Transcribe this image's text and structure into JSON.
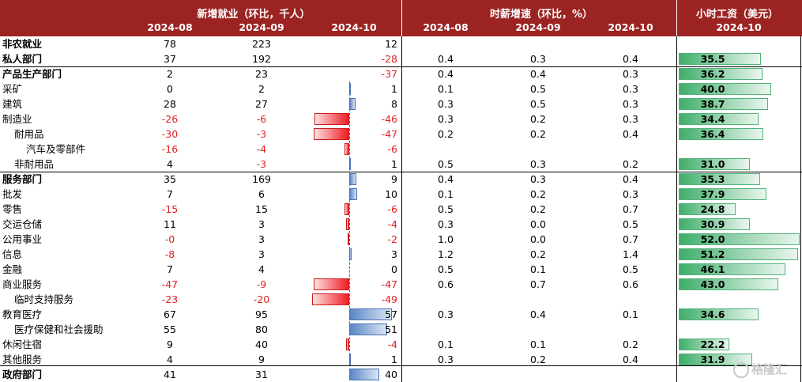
{
  "header": {
    "group_employment": "新增就业（环比，千人）",
    "group_wage_growth": "时薪增速（环比，%）",
    "group_hourly_wage": "小时工资（美元）",
    "months_employment": [
      "2024-08",
      "2024-09",
      "2024-10"
    ],
    "months_wage_growth": [
      "2024-08",
      "2024-09",
      "2024-10"
    ],
    "month_hourly_wage": "2024-10"
  },
  "rows": [
    {
      "label": "非农就业",
      "indent": 0,
      "bold": true,
      "emp": [
        "78",
        "223",
        "12"
      ],
      "emp_oct_value": 12,
      "wg": [
        "",
        "",
        ""
      ],
      "wage": "",
      "wage_value": null
    },
    {
      "label": "私人部门",
      "indent": 0,
      "bold": true,
      "emp": [
        "37",
        "192",
        "-28"
      ],
      "emp_oct_value": -28,
      "wg": [
        "0.4",
        "0.3",
        "0.4"
      ],
      "wage": "35.5",
      "wage_value": 35.5
    },
    {
      "label": "产品生产部门",
      "indent": 0,
      "bold": true,
      "emp": [
        "2",
        "23",
        "-37"
      ],
      "emp_oct_value": -37,
      "wg": [
        "0.4",
        "0.4",
        "0.3"
      ],
      "wage": "36.2",
      "wage_value": 36.2
    },
    {
      "label": "采矿",
      "indent": 0,
      "bold": false,
      "emp": [
        "0",
        "2",
        "1"
      ],
      "emp_oct_value": 1,
      "wg": [
        "0.1",
        "0.5",
        "0.3"
      ],
      "wage": "40.0",
      "wage_value": 40.0
    },
    {
      "label": "建筑",
      "indent": 0,
      "bold": false,
      "emp": [
        "28",
        "27",
        "8"
      ],
      "emp_oct_value": 8,
      "wg": [
        "0.3",
        "0.5",
        "0.3"
      ],
      "wage": "38.7",
      "wage_value": 38.7
    },
    {
      "label": "制造业",
      "indent": 0,
      "bold": false,
      "emp": [
        "-26",
        "-6",
        "-46"
      ],
      "emp_oct_value": -46,
      "wg": [
        "0.3",
        "0.2",
        "0.3"
      ],
      "wage": "34.4",
      "wage_value": 34.4
    },
    {
      "label": "耐用品",
      "indent": 1,
      "bold": false,
      "emp": [
        "-30",
        "-3",
        "-47"
      ],
      "emp_oct_value": -47,
      "wg": [
        "0.2",
        "0.2",
        "0.4"
      ],
      "wage": "36.4",
      "wage_value": 36.4
    },
    {
      "label": "汽车及零部件",
      "indent": 2,
      "bold": false,
      "emp": [
        "-16",
        "-4",
        "-6"
      ],
      "emp_oct_value": -6,
      "wg": [
        "",
        "",
        ""
      ],
      "wage": "",
      "wage_value": null
    },
    {
      "label": "非耐用品",
      "indent": 1,
      "bold": false,
      "emp": [
        "4",
        "-3",
        "1"
      ],
      "emp_oct_value": 1,
      "wg": [
        "0.5",
        "0.3",
        "0.2"
      ],
      "wage": "31.0",
      "wage_value": 31.0
    },
    {
      "label": "服务部门",
      "indent": 0,
      "bold": true,
      "emp": [
        "35",
        "169",
        "9"
      ],
      "emp_oct_value": 9,
      "wg": [
        "0.4",
        "0.3",
        "0.4"
      ],
      "wage": "35.3",
      "wage_value": 35.3
    },
    {
      "label": "批发",
      "indent": 0,
      "bold": false,
      "emp": [
        "7",
        "6",
        "10"
      ],
      "emp_oct_value": 10,
      "wg": [
        "0.1",
        "0.2",
        "0.3"
      ],
      "wage": "37.9",
      "wage_value": 37.9
    },
    {
      "label": "零售",
      "indent": 0,
      "bold": false,
      "emp": [
        "-15",
        "15",
        "-6"
      ],
      "emp_oct_value": -6,
      "wg": [
        "0.5",
        "0.2",
        "0.7"
      ],
      "wage": "24.8",
      "wage_value": 24.8
    },
    {
      "label": "交运仓储",
      "indent": 0,
      "bold": false,
      "emp": [
        "11",
        "3",
        "-4"
      ],
      "emp_oct_value": -4,
      "wg": [
        "0.3",
        "0.0",
        "0.5"
      ],
      "wage": "30.9",
      "wage_value": 30.9
    },
    {
      "label": "公用事业",
      "indent": 0,
      "bold": false,
      "emp": [
        "-0",
        "3",
        "-2"
      ],
      "emp_oct_value": -2,
      "wg": [
        "1.0",
        "0.0",
        "0.7"
      ],
      "wage": "52.0",
      "wage_value": 52.0
    },
    {
      "label": "信息",
      "indent": 0,
      "bold": false,
      "emp": [
        "-8",
        "3",
        "3"
      ],
      "emp_oct_value": 3,
      "wg": [
        "1.2",
        "0.2",
        "1.4"
      ],
      "wage": "51.2",
      "wage_value": 51.2
    },
    {
      "label": "金融",
      "indent": 0,
      "bold": false,
      "emp": [
        "7",
        "4",
        "0"
      ],
      "emp_oct_value": 0,
      "wg": [
        "0.5",
        "0.1",
        "0.5"
      ],
      "wage": "46.1",
      "wage_value": 46.1
    },
    {
      "label": "商业服务",
      "indent": 0,
      "bold": false,
      "emp": [
        "-47",
        "-9",
        "-47"
      ],
      "emp_oct_value": -47,
      "wg": [
        "0.6",
        "0.7",
        "0.6"
      ],
      "wage": "43.0",
      "wage_value": 43.0
    },
    {
      "label": "临时支持服务",
      "indent": 1,
      "bold": false,
      "emp": [
        "-23",
        "-20",
        "-49"
      ],
      "emp_oct_value": -49,
      "wg": [
        "",
        "",
        ""
      ],
      "wage": "",
      "wage_value": null
    },
    {
      "label": "教育医疗",
      "indent": 0,
      "bold": false,
      "emp": [
        "67",
        "95",
        "57"
      ],
      "emp_oct_value": 57,
      "wg": [
        "0.3",
        "0.4",
        "0.1"
      ],
      "wage": "34.6",
      "wage_value": 34.6
    },
    {
      "label": "医疗保健和社会援助",
      "indent": 1,
      "bold": false,
      "emp": [
        "55",
        "80",
        "51"
      ],
      "emp_oct_value": 51,
      "wg": [
        "",
        "",
        ""
      ],
      "wage": "",
      "wage_value": null
    },
    {
      "label": "休闲住宿",
      "indent": 0,
      "bold": false,
      "emp": [
        "9",
        "40",
        "-4"
      ],
      "emp_oct_value": -4,
      "wg": [
        "0.1",
        "0.1",
        "0.2"
      ],
      "wage": "22.2",
      "wage_value": 22.2
    },
    {
      "label": "其他服务",
      "indent": 0,
      "bold": false,
      "emp": [
        "4",
        "9",
        "1"
      ],
      "emp_oct_value": 1,
      "wg": [
        "0.3",
        "0.2",
        "0.4"
      ],
      "wage": "31.9",
      "wage_value": 31.9
    },
    {
      "label": "政府部门",
      "indent": 0,
      "bold": true,
      "emp": [
        "41",
        "31",
        "40"
      ],
      "emp_oct_value": 40,
      "wg": [
        "",
        "",
        ""
      ],
      "wage": "",
      "wage_value": null
    }
  ],
  "colors": {
    "header_bg": "#9b2423",
    "negative_text": "#e02020",
    "positive_bar": "#5b86c6",
    "negative_bar": "#ee1c24",
    "wage_bar": "#3fae6a"
  },
  "watermark": "格隆汇"
}
